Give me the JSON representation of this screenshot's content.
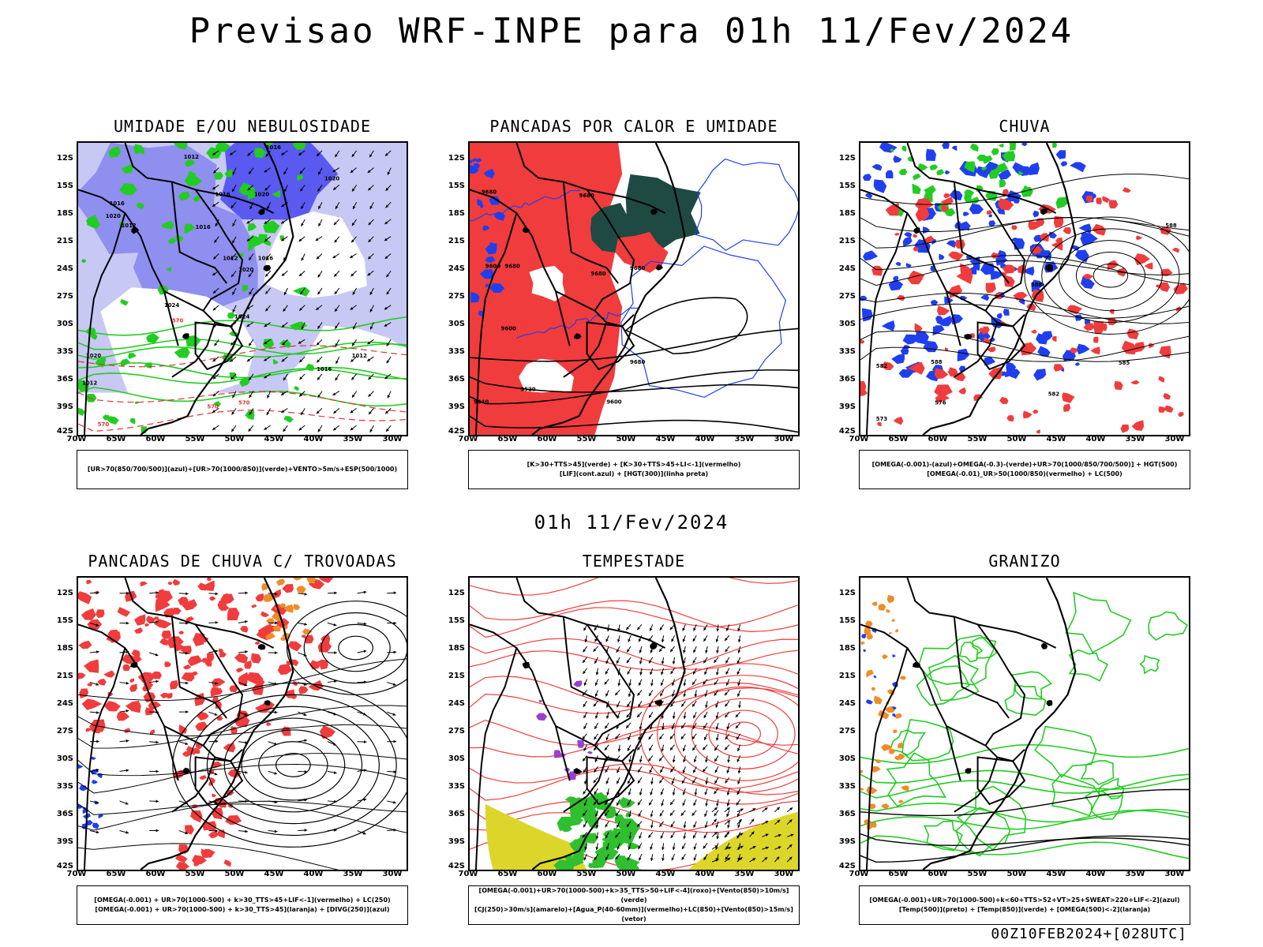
{
  "title": "Previsao WRF-INPE  para 01h 11/Fev/2024",
  "mid_time": "01h 11/Fev/2024",
  "footer": "00Z10FEB2024+[028UTC]",
  "lat_labels": [
    "12S",
    "15S",
    "18S",
    "21S",
    "24S",
    "27S",
    "30S",
    "33S",
    "36S",
    "39S",
    "42S"
  ],
  "lon_labels": [
    "70W",
    "65W",
    "60W",
    "55W",
    "50W",
    "45W",
    "40W",
    "35W",
    "30W"
  ],
  "colors": {
    "humidity_blue": "#8f8fef",
    "humidity_light": "#c8c8f4",
    "green": "#22cc22",
    "red": "#f03c3c",
    "blue": "#1f3fef",
    "dark_teal": "#1f4a44",
    "yellow": "#dcd62a",
    "orange": "#f08c28",
    "purple": "#9b3fcf"
  },
  "panels": [
    {
      "title": "UMIDADE E/OU NEBULOSIDADE",
      "legend": [
        "[UR>70(850/700/500)](azul)+[UR>70(1000/850)](verde)+VENTO>5m/s+ESP(500/1000)"
      ],
      "contour_labels": [
        "1016",
        "1012",
        "1016",
        "1020",
        "1016",
        "1020",
        "1012",
        "1016",
        "1020",
        "1012",
        "1016",
        "1020",
        "1024",
        "1024",
        "1012",
        "1016",
        "1020",
        "1012",
        "570",
        "570",
        "570",
        "570"
      ]
    },
    {
      "title": "PANCADAS POR CALOR E UMIDADE",
      "legend": [
        "[K>30+TTS>45](verde) + [K>30+TTS>45+LI<-1](vermelho)",
        "[LIF](cont.azul) + [HGT(300)](linha preta)"
      ],
      "contour_labels": [
        "9680",
        "9680",
        "9600",
        "9680",
        "9680",
        "9680",
        "9600",
        "9680",
        "9520",
        "9440",
        "9600"
      ]
    },
    {
      "title": "CHUVA",
      "legend": [
        "[OMEGA(-0.001)-(azul)+OMEGA(-0.3)-(verde)+UR>70(1000/850/700/500)] + HGT(500)",
        "[OMEGA(-0.01)_UR>50(1000/850)(vermelho) + LC(500)"
      ],
      "contour_labels": [
        "588",
        "588",
        "582",
        "588",
        "585",
        "582",
        "576",
        "573"
      ]
    },
    {
      "title": "PANCADAS DE CHUVA C/ TROVOADAS",
      "legend": [
        "[OMEGA(-0.001) + UR>70(1000-500) + k>30_TTS>45+LIF<-1](vermelho) + LC(250)",
        "[OMEGA(-0.001) + UR>70(1000-500) + k>30_TTS>45](laranja) + [DIVG(250)](azul)"
      ]
    },
    {
      "title": "TEMPESTADE",
      "legend": [
        "[OMEGA(-0.001)+UR>70(1000-500)+k>35_TTS>50+LIF<-4](roxo)+[Vento(850)>10m/s](verde)",
        "[CJ(250)>30m/s](amarelo)+[Agua_P(40-60mm)](vermelho)+LC(850)+[Vento(850)>15m/s](vetor)"
      ]
    },
    {
      "title": "GRANIZO",
      "legend": [
        "[OMEGA(-0.001)+UR>70(1000-500)+k<60+TTS>52+VT>25+SWEAT>220+LIF<-2](azul)",
        "[Temp(500)](preto) + [Temp(850)](verde) + [OMEGA(500)<-2](laranja)"
      ]
    }
  ]
}
